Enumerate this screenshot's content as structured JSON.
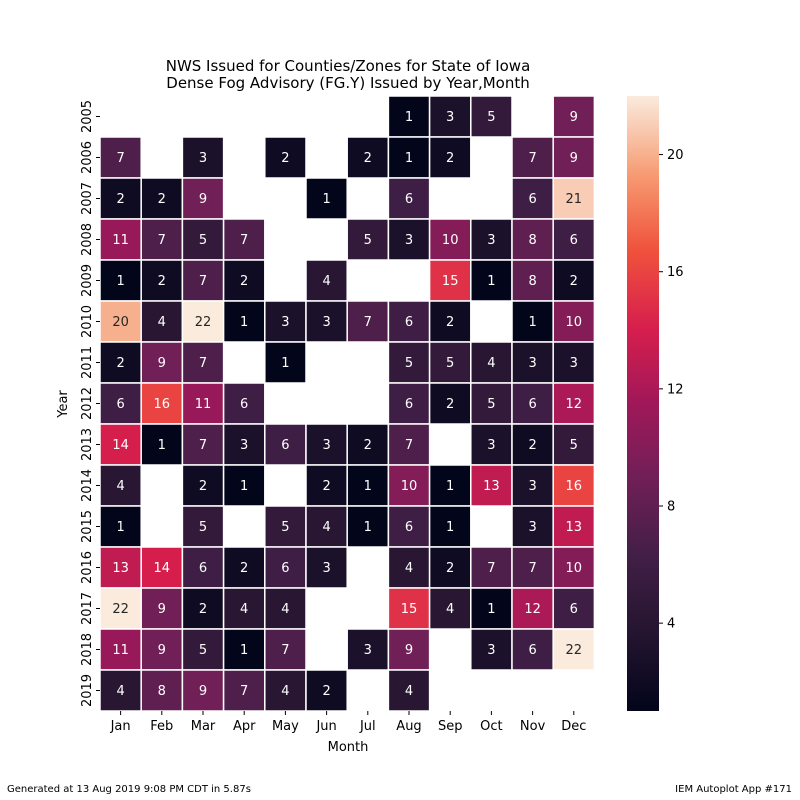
{
  "chart_data": {
    "type": "heatmap",
    "title": "NWS Issued for Counties/Zones for State of Iowa",
    "subtitle": "Dense Fog Advisory (FG.Y) Issued by Year,Month",
    "xlabel": "Month",
    "ylabel": "Year",
    "x": [
      "Jan",
      "Feb",
      "Mar",
      "Apr",
      "May",
      "Jun",
      "Jul",
      "Aug",
      "Sep",
      "Oct",
      "Nov",
      "Dec"
    ],
    "y": [
      "2005",
      "2006",
      "2007",
      "2008",
      "2009",
      "2010",
      "2011",
      "2012",
      "2013",
      "2014",
      "2015",
      "2016",
      "2017",
      "2018",
      "2019"
    ],
    "values": [
      [
        null,
        null,
        null,
        null,
        null,
        null,
        null,
        1,
        3,
        5,
        null,
        9
      ],
      [
        7,
        null,
        3,
        null,
        2,
        null,
        2,
        1,
        2,
        null,
        7,
        9
      ],
      [
        2,
        2,
        9,
        null,
        null,
        1,
        null,
        6,
        null,
        null,
        6,
        21
      ],
      [
        11,
        7,
        5,
        7,
        null,
        null,
        5,
        3,
        10,
        3,
        8,
        6
      ],
      [
        1,
        2,
        7,
        2,
        null,
        4,
        null,
        null,
        15,
        1,
        8,
        2
      ],
      [
        20,
        4,
        22,
        1,
        3,
        3,
        7,
        6,
        2,
        null,
        1,
        10
      ],
      [
        2,
        9,
        7,
        null,
        1,
        null,
        null,
        5,
        5,
        4,
        3,
        3
      ],
      [
        6,
        16,
        11,
        6,
        null,
        null,
        null,
        6,
        2,
        5,
        6,
        12
      ],
      [
        14,
        1,
        7,
        3,
        6,
        3,
        2,
        7,
        null,
        3,
        2,
        5
      ],
      [
        4,
        null,
        2,
        1,
        null,
        2,
        1,
        10,
        1,
        13,
        3,
        16
      ],
      [
        1,
        null,
        5,
        null,
        5,
        4,
        1,
        6,
        1,
        null,
        3,
        13
      ],
      [
        13,
        14,
        6,
        2,
        6,
        3,
        null,
        4,
        2,
        7,
        7,
        10
      ],
      [
        22,
        9,
        2,
        4,
        4,
        null,
        null,
        15,
        4,
        1,
        12,
        6
      ],
      [
        11,
        9,
        5,
        1,
        7,
        null,
        3,
        9,
        null,
        3,
        6,
        22
      ],
      [
        4,
        8,
        9,
        7,
        4,
        2,
        null,
        4,
        null,
        null,
        null,
        null
      ]
    ],
    "colorbar": {
      "min": 1,
      "max": 22,
      "ticks": [
        4,
        8,
        12,
        16,
        20
      ]
    },
    "colormap": "rocket"
  },
  "footer": {
    "left": "Generated at 13 Aug 2019 9:08 PM CDT in 5.87s",
    "right": "IEM Autoplot App #171"
  }
}
